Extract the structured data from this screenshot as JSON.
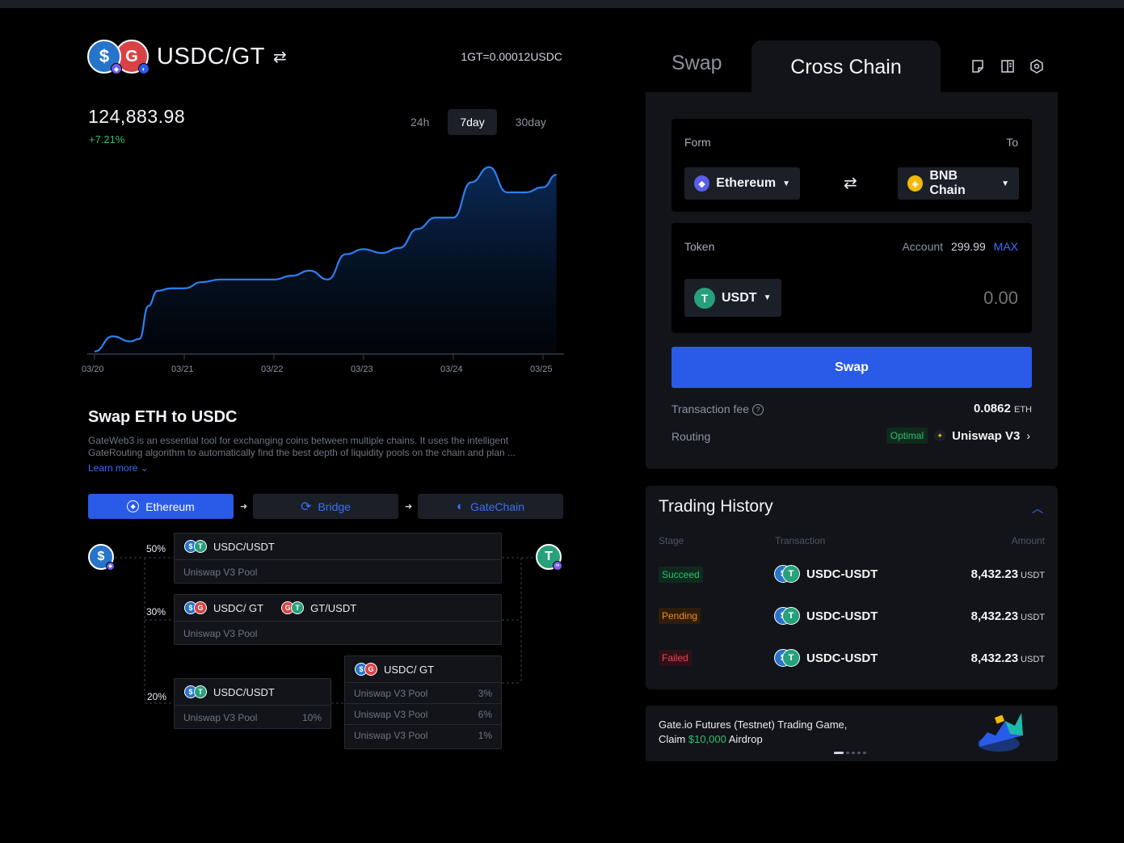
{
  "pair": {
    "title": "USDC/GT",
    "rate": "1GT=0.00012USDC"
  },
  "price": {
    "value": "124,883.98",
    "change": "+7.21%"
  },
  "timeframes": [
    {
      "label": "24h",
      "active": false
    },
    {
      "label": "7day",
      "active": true
    },
    {
      "label": "30day",
      "active": false
    }
  ],
  "chart_data": {
    "type": "area",
    "x": [
      "03/20",
      "03/21",
      "03/22",
      "03/23",
      "03/24",
      "03/25"
    ],
    "points_x": [
      0,
      0.2,
      0.4,
      0.5,
      0.6,
      0.7,
      0.85,
      1.0,
      1.2,
      1.4,
      1.6,
      1.8,
      2.0,
      2.2,
      2.4,
      2.6,
      2.8,
      3.0,
      3.2,
      3.4,
      3.6,
      3.8,
      4.0,
      4.2,
      4.4,
      4.6,
      4.8,
      5.0,
      5.15
    ],
    "points_y": [
      2,
      14,
      10,
      12,
      38,
      50,
      52,
      52,
      57,
      59,
      59,
      59,
      59,
      62,
      66,
      59,
      79,
      83,
      80,
      84,
      99,
      108,
      108,
      136,
      148,
      128,
      128,
      132,
      142
    ],
    "ylim": [
      0,
      160
    ],
    "xlabel": "",
    "ylabel": "",
    "grid": false
  },
  "section": {
    "title": "Swap ETH to USDC",
    "desc": "GateWeb3 is an essential tool for exchanging coins between multiple chains. It uses the intelligent GateRouting algorithm to automatically find the best depth of liquidity pools on the chain and plan ...",
    "learn_more": "Learn more"
  },
  "route": {
    "from": "Ethereum",
    "bridge": "Bridge",
    "to": "GateChain"
  },
  "routing": {
    "pct1": "50%",
    "pct2": "30%",
    "pct3": "20%",
    "p1_pair": "USDC/USDT",
    "p1_sub": "Uniswap V3 Pool",
    "p2_pair_a": "USDC/ GT",
    "p2_pair_b": "GT/USDT",
    "p2_sub": "Uniswap V3 Pool",
    "p3_pair": "USDC/USDT",
    "p3_sub": "Uniswap V3 Pool",
    "p3_pct": "10%",
    "p4_pair": "USDC/ GT",
    "p4_rows": [
      {
        "label": "Uniswap V3 Pool",
        "pct": "3%"
      },
      {
        "label": "Uniswap V3 Pool",
        "pct": "6%"
      },
      {
        "label": "Uniswap V3 Pool",
        "pct": "1%"
      }
    ]
  },
  "tabs": {
    "swap": "Swap",
    "cross": "Cross Chain"
  },
  "form": {
    "from_label": "Form",
    "to_label": "To",
    "from_chain": "Ethereum",
    "to_chain": "BNB Chain",
    "token_label": "Token",
    "account_label": "Account",
    "account_value": "299.99",
    "max": "MAX",
    "token": "USDT",
    "amount_placeholder": "0.00",
    "swap_button": "Swap",
    "fee_label": "Transaction fee",
    "fee_value": "0.0862",
    "fee_unit": "ETH",
    "routing_label": "Routing",
    "routing_badge": "Optimal",
    "routing_value": "Uniswap V3"
  },
  "history": {
    "title": "Trading History",
    "cols": {
      "stage": "Stage",
      "tx": "Transaction",
      "amount": "Amount"
    },
    "rows": [
      {
        "stage": "Succeed",
        "tx": "USDC-USDT",
        "amount": "8,432.23",
        "unit": "USDT"
      },
      {
        "stage": "Pending",
        "tx": "USDC-USDT",
        "amount": "8,432.23",
        "unit": "USDT"
      },
      {
        "stage": "Failed",
        "tx": "USDC-USDT",
        "amount": "8,432.23",
        "unit": "USDT"
      }
    ]
  },
  "promo": {
    "line1": "Gate.io Futures (Testnet) Trading Game,",
    "claim": "Claim",
    "amount": "$10,000",
    "airdrop": "Airdrop"
  },
  "colors": {
    "accent": "#2a5ae8",
    "up": "#2fbf71",
    "pending": "#f08a24",
    "failed": "#e24a5c",
    "line": "#2f7ff0"
  }
}
